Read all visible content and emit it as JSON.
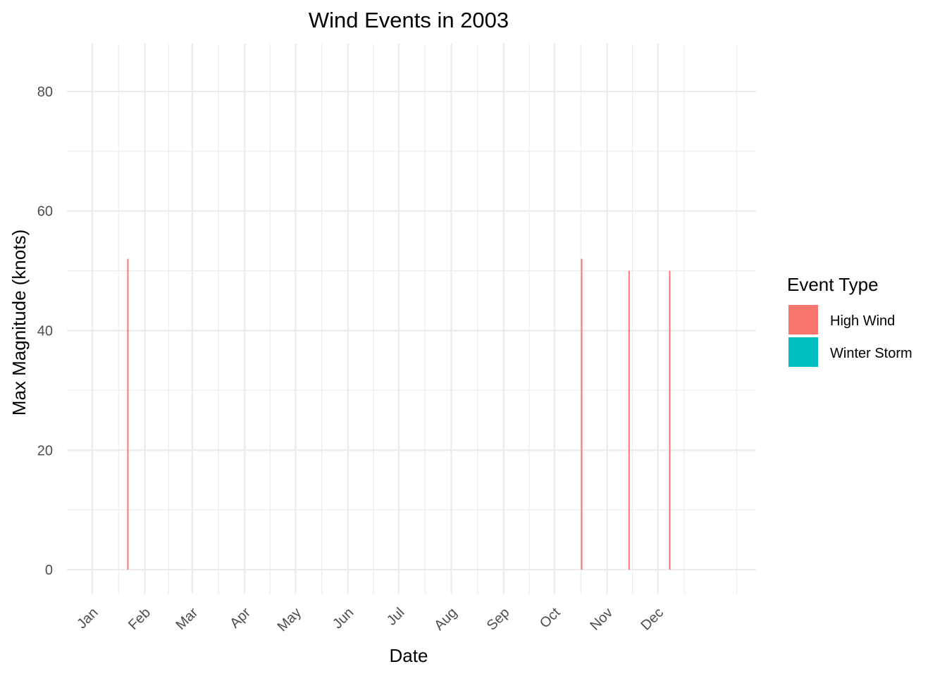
{
  "chart_data": {
    "type": "bar",
    "title": "Wind Events in 2003",
    "xlabel": "Date",
    "ylabel": "Max Magnitude (knots)",
    "x_tick_labels": [
      "Jan",
      "Feb",
      "Mar",
      "Apr",
      "May",
      "Jun",
      "Jul",
      "Aug",
      "Sep",
      "Oct",
      "Nov",
      "Dec"
    ],
    "x_tick_dates": [
      "2003-01-01",
      "2003-02-01",
      "2003-03-01",
      "2003-04-01",
      "2003-05-01",
      "2003-06-01",
      "2003-07-01",
      "2003-08-01",
      "2003-09-01",
      "2003-10-01",
      "2003-11-01",
      "2003-12-01"
    ],
    "xlim": [
      "2002-12-17",
      "2004-01-28"
    ],
    "ylim": [
      -4,
      88
    ],
    "y_ticks": [
      0,
      20,
      40,
      60,
      80
    ],
    "grid": true,
    "legend": {
      "title": "Event Type",
      "position": "right",
      "entries": [
        {
          "name": "High Wind",
          "color": "#F8766D"
        },
        {
          "name": "Winter Storm",
          "color": "#00BFC4"
        }
      ]
    },
    "series": [
      {
        "name": "High Wind",
        "color": "#F8766D",
        "points": [
          {
            "date": "2003-01-22",
            "value": 52
          },
          {
            "date": "2003-10-17",
            "value": 52
          },
          {
            "date": "2003-11-14",
            "value": 50
          },
          {
            "date": "2003-12-08",
            "value": 50
          }
        ]
      },
      {
        "name": "Winter Storm",
        "color": "#00BFC4",
        "points": []
      }
    ]
  }
}
